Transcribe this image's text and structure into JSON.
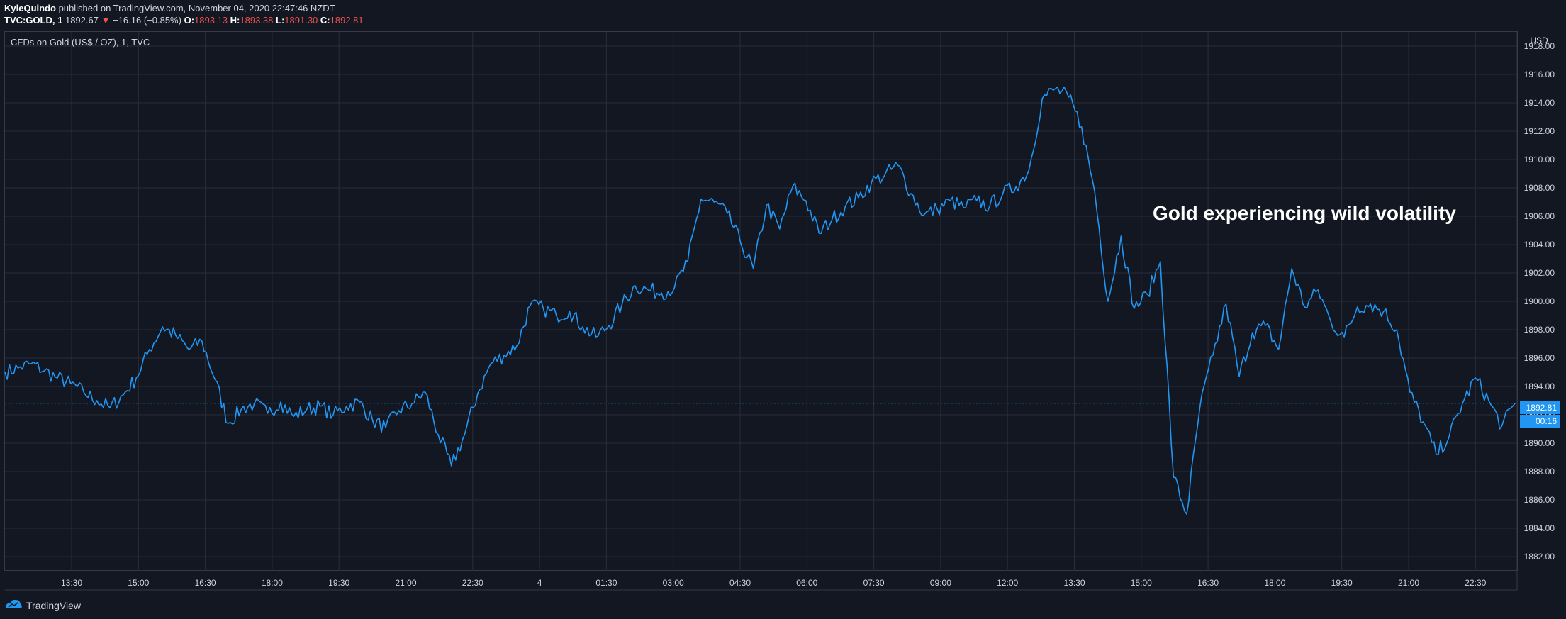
{
  "header": {
    "author": "KyleQuindo",
    "published": "published on TradingView.com, November 04, 2020 22:47:46 NZDT",
    "symbol": "TVC:GOLD, 1",
    "last": "1892.67",
    "arrow": "▼",
    "change": "−16.16 (−0.85%)",
    "o_label": "O:",
    "o_value": "1893.13",
    "h_label": "H:",
    "h_value": "1893.38",
    "l_label": "L:",
    "l_value": "1891.30",
    "c_label": "C:",
    "c_value": "1892.81"
  },
  "chart_title": "CFDs on Gold (US$ / OZ), 1, TVC",
  "annotation": "Gold experiencing wild volatility",
  "currency": "USD",
  "last_price_label": "1892.81",
  "countdown_label": "00:16",
  "footer": {
    "brand": "TradingView",
    "icon": "tradingview-logo-icon"
  },
  "colors": {
    "background": "#131722",
    "line": "#2196f3",
    "grid": "#2a2e39",
    "down": "#ef5350"
  },
  "chart_data": {
    "type": "line",
    "title": "CFDs on Gold (US$ / OZ), 1, TVC",
    "grid": true,
    "ylim": [
      1881,
      1919
    ],
    "y_ticks": [
      "1882.00",
      "1884.00",
      "1886.00",
      "1888.00",
      "1890.00",
      "1892.00",
      "1894.00",
      "1896.00",
      "1898.00",
      "1900.00",
      "1902.00",
      "1904.00",
      "1906.00",
      "1908.00",
      "1910.00",
      "1912.00",
      "1914.00",
      "1916.00",
      "1918.00"
    ],
    "x_ticks": [
      "13:30",
      "15:00",
      "16:30",
      "18:00",
      "19:30",
      "21:00",
      "22:30",
      "4",
      "01:30",
      "03:00",
      "04:30",
      "06:00",
      "07:30",
      "09:00",
      "12:00",
      "13:30",
      "15:00",
      "16:30",
      "18:00",
      "19:30",
      "21:00",
      "22:30"
    ],
    "series": [
      {
        "values": [
          1895.0,
          1895.3,
          1895.6,
          1895.1,
          1894.6,
          1894.2,
          1893.6,
          1893.0,
          1892.5,
          1893.4,
          1894.6,
          1896.6,
          1898.2,
          1897.6,
          1896.6,
          1897.2,
          1894.5,
          1891.4,
          1892.4,
          1892.8,
          1892.1,
          1892.9,
          1891.9,
          1892.4,
          1892.6,
          1892.0,
          1892.6,
          1892.9,
          1891.6,
          1891.1,
          1892.3,
          1892.8,
          1893.6,
          1890.6,
          1888.4,
          1890.6,
          1893.5,
          1895.6,
          1896.2,
          1896.9,
          1899.7,
          1899.5,
          1899.0,
          1899.3,
          1898.2,
          1897.5,
          1898.3,
          1899.8,
          1901.1,
          1900.8,
          1900.6,
          1901.0,
          1902.8,
          1907.2,
          1907.0,
          1906.2,
          1904.2,
          1902.3,
          1906.8,
          1905.1,
          1908.1,
          1907.1,
          1904.8,
          1905.8,
          1906.7,
          1907.3,
          1908.4,
          1908.9,
          1909.6,
          1907.6,
          1906.1,
          1906.5,
          1907.1,
          1906.6,
          1907.1,
          1906.7,
          1907.6,
          1908.1,
          1909.3,
          1914.3,
          1915.0,
          1914.4,
          1912.3,
          1907.7,
          1900.0,
          1904.6,
          1899.5,
          1900.5,
          1902.8,
          1887.6,
          1885.0,
          1892.5,
          1896.2,
          1899.8,
          1894.7,
          1897.8,
          1898.3,
          1896.6,
          1902.3,
          1899.6,
          1900.8,
          1898.5,
          1897.5,
          1899.6,
          1899.8,
          1899.3,
          1898.0,
          1893.6,
          1891.5,
          1889.2,
          1890.5,
          1892.8,
          1894.6,
          1893.0,
          1891.2,
          1892.8
        ]
      }
    ]
  }
}
